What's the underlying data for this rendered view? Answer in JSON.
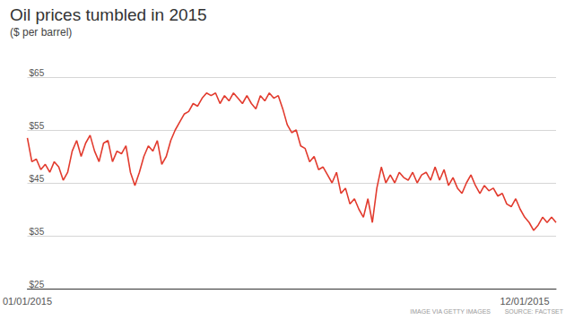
{
  "chart_data": {
    "type": "line",
    "title": "Oil prices tumbled in 2015",
    "subtitle": "($ per barrel)",
    "annotations": [
      "IMAGE VIA GETTY IMAGES",
      "SOURCE: FACTSET"
    ],
    "categories": [
      "01/01/2015",
      null,
      null,
      null,
      null,
      null,
      null,
      null,
      null,
      null,
      null,
      null,
      null,
      null,
      null,
      null,
      null,
      null,
      null,
      null,
      null,
      null,
      null,
      null,
      null,
      null,
      null,
      null,
      null,
      null,
      null,
      null,
      null,
      null,
      null,
      null,
      null,
      null,
      null,
      null,
      null,
      null,
      null,
      null,
      null,
      null,
      null,
      null,
      null,
      null,
      null,
      null,
      null,
      null,
      null,
      null,
      null,
      null,
      null,
      null,
      null,
      null,
      null,
      null,
      null,
      null,
      null,
      null,
      null,
      null,
      null,
      null,
      null,
      null,
      null,
      null,
      null,
      null,
      null,
      null,
      null,
      null,
      null,
      null,
      null,
      null,
      null,
      null,
      null,
      null,
      null,
      null,
      null,
      null,
      null,
      null,
      null,
      null,
      null,
      null,
      null,
      null,
      null,
      null,
      null,
      null,
      null,
      null,
      null,
      null,
      null,
      "12/01/2015",
      null,
      null,
      null,
      null,
      null,
      null,
      null
    ],
    "values": [
      53.5,
      49,
      49.5,
      47.5,
      48.5,
      47,
      49,
      48,
      45.5,
      47,
      51,
      53,
      50,
      52.5,
      54,
      51,
      49,
      52.5,
      53,
      49,
      51,
      50.5,
      52,
      47,
      44.5,
      47,
      50,
      52,
      51,
      53,
      48.5,
      50,
      53,
      55,
      56.5,
      58,
      58.5,
      60,
      59.5,
      61,
      62,
      61.5,
      62,
      60,
      61.5,
      60.5,
      62,
      61,
      60,
      61.5,
      60,
      59,
      61.5,
      60.5,
      62,
      61,
      61.5,
      59,
      56,
      54.5,
      55,
      52,
      51.5,
      49,
      50,
      47.5,
      48,
      46.5,
      45,
      47,
      43,
      44,
      41,
      42,
      40,
      38.5,
      42,
      37.5,
      44,
      48,
      45,
      46.5,
      45,
      47,
      46,
      45.5,
      47,
      45,
      46.5,
      47,
      45.5,
      48,
      45.5,
      47.5,
      44.5,
      46,
      44,
      43,
      45,
      46.5,
      44.5,
      43,
      44.5,
      43.5,
      44,
      42.5,
      43,
      41,
      40.5,
      42,
      40,
      38.5,
      37.5,
      36,
      37,
      38.5,
      37.5,
      38.5,
      37.5
    ],
    "color": "#e23b2e",
    "ylim": [
      25,
      65
    ],
    "yticks": [
      {
        "value": 25,
        "label": "$25"
      },
      {
        "value": 35,
        "label": "$35"
      },
      {
        "value": 45,
        "label": "$45"
      },
      {
        "value": 55,
        "label": "$55"
      },
      {
        "value": 65,
        "label": "$65"
      }
    ],
    "grid": true
  }
}
